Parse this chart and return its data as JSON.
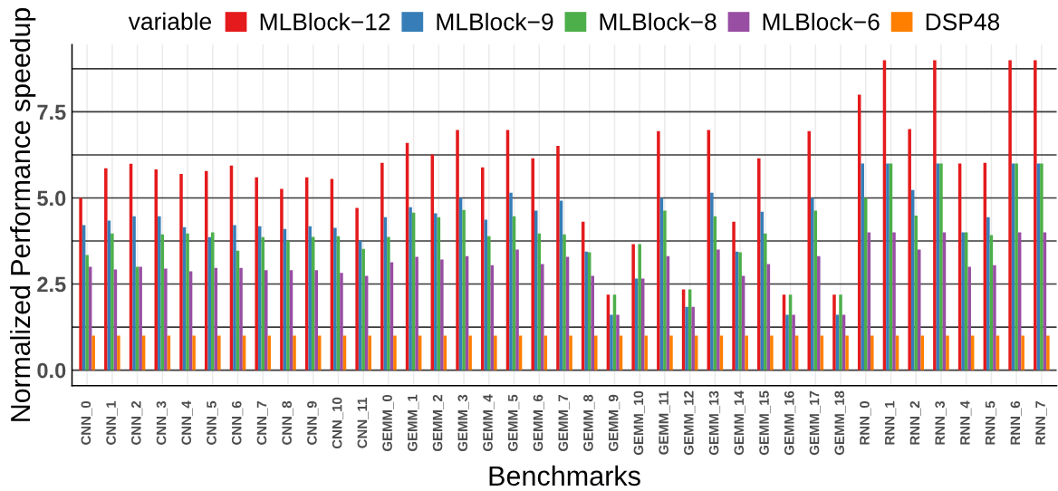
{
  "chart_data": {
    "type": "bar",
    "xlabel": "Benchmarks",
    "ylabel": "Normalized Performance speedup",
    "legend_title": "variable",
    "legend": "top",
    "grid": true,
    "categories": [
      "CNN_0",
      "CNN_1",
      "CNN_2",
      "CNN_3",
      "CNN_4",
      "CNN_5",
      "CNN_6",
      "CNN_7",
      "CNN_8",
      "CNN_9",
      "CNN_10",
      "CNN_11",
      "GEMM_0",
      "GEMM_1",
      "GEMM_2",
      "GEMM_3",
      "GEMM_4",
      "GEMM_5",
      "GEMM_6",
      "GEMM_7",
      "GEMM_8",
      "GEMM_9",
      "GEMM_10",
      "GEMM_11",
      "GEMM_12",
      "GEMM_13",
      "GEMM_14",
      "GEMM_15",
      "GEMM_16",
      "GEMM_17",
      "GEMM_18",
      "RNN_0",
      "RNN_1",
      "RNN_2",
      "RNN_3",
      "RNN_4",
      "RNN_5",
      "RNN_6",
      "RNN_7"
    ],
    "ylim": [
      -0.45,
      9.45
    ],
    "yticks": [
      {
        "value": 0,
        "label": "0.0"
      },
      {
        "value": 1.25,
        "label": null
      },
      {
        "value": 2.5,
        "label": "2.5"
      },
      {
        "value": 3.75,
        "label": null
      },
      {
        "value": 5,
        "label": "5.0"
      },
      {
        "value": 6.25,
        "label": null
      },
      {
        "value": 7.5,
        "label": "7.5"
      },
      {
        "value": 8.75,
        "label": null
      }
    ],
    "series": [
      {
        "name": "MLBlock−12",
        "color": "#e41a1c",
        "values": [
          5.0,
          5.86,
          5.99,
          5.83,
          5.7,
          5.78,
          5.94,
          5.6,
          5.26,
          5.6,
          5.55,
          4.71,
          6.02,
          6.6,
          6.26,
          6.97,
          5.89,
          6.97,
          6.15,
          6.51,
          4.31,
          2.19,
          3.66,
          6.94,
          2.34,
          6.97,
          4.31,
          6.15,
          2.19,
          6.94,
          2.19,
          8.0,
          9.0,
          7.0,
          9.0,
          6.0,
          6.02,
          9.0,
          9.0
        ]
      },
      {
        "name": "MLBlock−9",
        "color": "#377eb8",
        "values": [
          4.21,
          4.34,
          4.47,
          4.47,
          4.15,
          3.86,
          4.21,
          4.18,
          4.1,
          4.18,
          4.13,
          3.76,
          4.44,
          4.73,
          4.55,
          5.0,
          4.37,
          5.15,
          4.63,
          4.92,
          3.44,
          1.61,
          2.66,
          5.0,
          1.84,
          5.15,
          3.44,
          4.6,
          1.61,
          5.0,
          1.61,
          6.0,
          6.0,
          5.23,
          6.0,
          4.0,
          4.44,
          6.0,
          6.0
        ]
      },
      {
        "name": "MLBlock−8",
        "color": "#4daf4a",
        "values": [
          3.34,
          3.97,
          3.0,
          3.94,
          3.97,
          4.0,
          3.47,
          3.86,
          3.76,
          3.87,
          3.89,
          3.52,
          3.87,
          4.57,
          4.44,
          4.65,
          3.89,
          4.47,
          3.97,
          3.94,
          3.42,
          2.19,
          3.66,
          4.63,
          2.34,
          4.47,
          3.42,
          3.97,
          2.19,
          4.63,
          2.19,
          5.0,
          6.0,
          4.49,
          6.0,
          4.0,
          3.92,
          6.0,
          6.0
        ]
      },
      {
        "name": "MLBlock−6",
        "color": "#984ea3",
        "values": [
          3.0,
          2.92,
          3.0,
          2.95,
          2.87,
          2.97,
          2.97,
          2.9,
          2.9,
          2.9,
          2.82,
          2.74,
          3.13,
          3.29,
          3.21,
          3.31,
          3.05,
          3.5,
          3.08,
          3.29,
          2.74,
          1.61,
          2.66,
          3.31,
          1.84,
          3.5,
          2.74,
          3.08,
          1.61,
          3.31,
          1.61,
          4.0,
          4.0,
          3.5,
          4.0,
          3.0,
          3.05,
          4.0,
          4.0
        ]
      },
      {
        "name": "DSP48",
        "color": "#ff7f00",
        "values": [
          1.0,
          1.0,
          1.0,
          1.0,
          1.0,
          1.0,
          1.0,
          1.0,
          1.0,
          1.0,
          1.0,
          1.0,
          1.0,
          1.0,
          1.0,
          1.0,
          1.0,
          1.0,
          1.0,
          1.0,
          1.0,
          1.0,
          1.0,
          1.0,
          1.0,
          1.0,
          1.0,
          1.0,
          1.0,
          1.0,
          1.0,
          1.0,
          1.0,
          1.0,
          1.0,
          1.0,
          1.0,
          1.0,
          1.0
        ]
      }
    ]
  }
}
